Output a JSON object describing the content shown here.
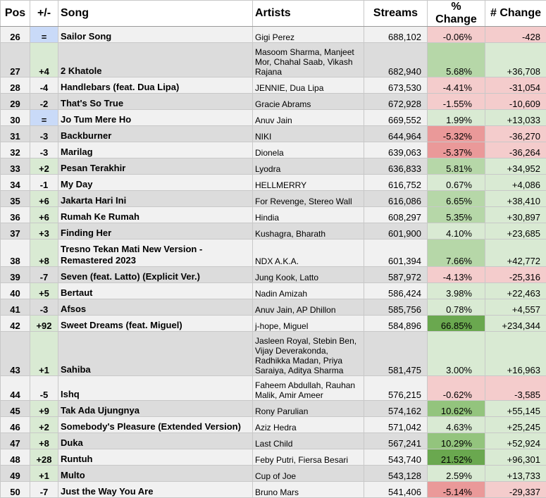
{
  "colors": {
    "neutral": "#c9daf8",
    "up_cell": "#d9ead3",
    "pos_light": "#d9ead3",
    "pos_mid": "#b6d7a8",
    "pos_strong": "#93c47d",
    "pos_max": "#6aa84f",
    "neg_light": "#f4cccc",
    "neg_mid": "#ea9999"
  },
  "header": {
    "pos": "Pos",
    "move": "+/-",
    "song": "Song",
    "artists": "Artists",
    "streams": "Streams",
    "pct": "% Change",
    "abs": "# Change"
  },
  "rows": [
    {
      "pos": "26",
      "move": "=",
      "song": "Sailor Song",
      "artists": "Gigi Perez",
      "streams": "688,102",
      "pct": "-0.06%",
      "abs": "-428",
      "dir": "same",
      "h": 22,
      "pctColor": "#f4cccc",
      "absColor": "#f4cccc"
    },
    {
      "pos": "27",
      "move": "+4",
      "song": "2 Khatole",
      "artists": "Masoom Sharma, Manjeet Mor, Chahal Saab, Vikash Rajana",
      "streams": "682,940",
      "pct": "5.68%",
      "abs": "+36,708",
      "dir": "up",
      "h": 48,
      "pctColor": "#b6d7a8",
      "absColor": "#d9ead3"
    },
    {
      "pos": "28",
      "move": "-4",
      "song": "Handlebars (feat. Dua Lipa)",
      "artists": "JENNIE, Dua Lipa",
      "streams": "673,530",
      "pct": "-4.41%",
      "abs": "-31,054",
      "dir": "down",
      "h": 22,
      "pctColor": "#f4cccc",
      "absColor": "#f4cccc"
    },
    {
      "pos": "29",
      "move": "-2",
      "song": "That's So True",
      "artists": "Gracie Abrams",
      "streams": "672,928",
      "pct": "-1.55%",
      "abs": "-10,609",
      "dir": "down",
      "h": 22,
      "pctColor": "#f4cccc",
      "absColor": "#f4cccc"
    },
    {
      "pos": "30",
      "move": "=",
      "song": "Jo Tum Mere Ho",
      "artists": "Anuv Jain",
      "streams": "669,552",
      "pct": "1.99%",
      "abs": "+13,033",
      "dir": "same",
      "h": 22,
      "pctColor": "#d9ead3",
      "absColor": "#d9ead3"
    },
    {
      "pos": "31",
      "move": "-3",
      "song": "Backburner",
      "artists": "NIKI",
      "streams": "644,964",
      "pct": "-5.32%",
      "abs": "-36,270",
      "dir": "down",
      "h": 22,
      "pctColor": "#ea9999",
      "absColor": "#f4cccc"
    },
    {
      "pos": "32",
      "move": "-3",
      "song": "Marilag",
      "artists": "Dionela",
      "streams": "639,063",
      "pct": "-5.37%",
      "abs": "-36,264",
      "dir": "down",
      "h": 22,
      "pctColor": "#ea9999",
      "absColor": "#f4cccc"
    },
    {
      "pos": "33",
      "move": "+2",
      "song": "Pesan Terakhir",
      "artists": "Lyodra",
      "streams": "636,833",
      "pct": "5.81%",
      "abs": "+34,952",
      "dir": "up",
      "h": 22,
      "pctColor": "#b6d7a8",
      "absColor": "#d9ead3"
    },
    {
      "pos": "34",
      "move": "-1",
      "song": "My Day",
      "artists": "HELLMERRY",
      "streams": "616,752",
      "pct": "0.67%",
      "abs": "+4,086",
      "dir": "down",
      "h": 22,
      "pctColor": "#d9ead3",
      "absColor": "#d9ead3"
    },
    {
      "pos": "35",
      "move": "+6",
      "song": "Jakarta Hari Ini",
      "artists": "For Revenge, Stereo Wall",
      "streams": "616,086",
      "pct": "6.65%",
      "abs": "+38,410",
      "dir": "up",
      "h": 22,
      "pctColor": "#b6d7a8",
      "absColor": "#d9ead3"
    },
    {
      "pos": "36",
      "move": "+6",
      "song": "Rumah Ke Rumah",
      "artists": "Hindia",
      "streams": "608,297",
      "pct": "5.35%",
      "abs": "+30,897",
      "dir": "up",
      "h": 22,
      "pctColor": "#b6d7a8",
      "absColor": "#d9ead3"
    },
    {
      "pos": "37",
      "move": "+3",
      "song": "Finding Her",
      "artists": "Kushagra, Bharath",
      "streams": "601,900",
      "pct": "4.10%",
      "abs": "+23,685",
      "dir": "up",
      "h": 22,
      "pctColor": "#d9ead3",
      "absColor": "#d9ead3"
    },
    {
      "pos": "38",
      "move": "+8",
      "song": "Tresno Tekan Mati New Version - Remastered 2023",
      "artists": "NDX A.K.A.",
      "streams": "601,394",
      "pct": "7.66%",
      "abs": "+42,772",
      "dir": "up",
      "h": 38,
      "pctColor": "#b6d7a8",
      "absColor": "#d9ead3"
    },
    {
      "pos": "39",
      "move": "-7",
      "song": "Seven (feat. Latto) (Explicit Ver.)",
      "artists": "Jung Kook, Latto",
      "streams": "587,972",
      "pct": "-4.13%",
      "abs": "-25,316",
      "dir": "down",
      "h": 22,
      "pctColor": "#f4cccc",
      "absColor": "#f4cccc"
    },
    {
      "pos": "40",
      "move": "+5",
      "song": "Bertaut",
      "artists": "Nadin Amizah",
      "streams": "586,424",
      "pct": "3.98%",
      "abs": "+22,463",
      "dir": "up",
      "h": 22,
      "pctColor": "#d9ead3",
      "absColor": "#d9ead3"
    },
    {
      "pos": "41",
      "move": "-3",
      "song": "Afsos",
      "artists": "Anuv Jain, AP Dhillon",
      "streams": "585,756",
      "pct": "0.78%",
      "abs": "+4,557",
      "dir": "down",
      "h": 22,
      "pctColor": "#d9ead3",
      "absColor": "#d9ead3"
    },
    {
      "pos": "42",
      "move": "+92",
      "song": "Sweet Dreams (feat. Miguel)",
      "artists": "j-hope, Miguel",
      "streams": "584,896",
      "pct": "66.85%",
      "abs": "+234,344",
      "dir": "up",
      "h": 22,
      "pctColor": "#6aa84f",
      "absColor": "#d9ead3"
    },
    {
      "pos": "43",
      "move": "+1",
      "song": "Sahiba",
      "artists": "Jasleen Royal, Stebin Ben, Vijay Deverakonda, Radhikka Madan, Priya Saraiya, Aditya Sharma",
      "streams": "581,475",
      "pct": "3.00%",
      "abs": "+16,963",
      "dir": "up",
      "h": 62,
      "pctColor": "#d9ead3",
      "absColor": "#d9ead3"
    },
    {
      "pos": "44",
      "move": "-5",
      "song": "Ishq",
      "artists": "Faheem Abdullah, Rauhan Malik, Amir Ameer",
      "streams": "576,215",
      "pct": "-0.62%",
      "abs": "-3,585",
      "dir": "down",
      "h": 34,
      "pctColor": "#f4cccc",
      "absColor": "#f4cccc"
    },
    {
      "pos": "45",
      "move": "+9",
      "song": "Tak Ada Ujungnya",
      "artists": "Rony Parulian",
      "streams": "574,162",
      "pct": "10.62%",
      "abs": "+55,145",
      "dir": "up",
      "h": 22,
      "pctColor": "#93c47d",
      "absColor": "#d9ead3"
    },
    {
      "pos": "46",
      "move": "+2",
      "song": "Somebody's Pleasure (Extended Version)",
      "artists": "Aziz Hedra",
      "streams": "571,042",
      "pct": "4.63%",
      "abs": "+25,245",
      "dir": "up",
      "h": 22,
      "pctColor": "#d9ead3",
      "absColor": "#d9ead3"
    },
    {
      "pos": "47",
      "move": "+8",
      "song": "Duka",
      "artists": "Last Child",
      "streams": "567,241",
      "pct": "10.29%",
      "abs": "+52,924",
      "dir": "up",
      "h": 22,
      "pctColor": "#93c47d",
      "absColor": "#d9ead3"
    },
    {
      "pos": "48",
      "move": "+28",
      "song": "Runtuh",
      "artists": "Feby Putri, Fiersa Besari",
      "streams": "543,740",
      "pct": "21.52%",
      "abs": "+96,301",
      "dir": "up",
      "h": 22,
      "pctColor": "#6aa84f",
      "absColor": "#d9ead3"
    },
    {
      "pos": "49",
      "move": "+1",
      "song": "Multo",
      "artists": "Cup of Joe",
      "streams": "543,128",
      "pct": "2.59%",
      "abs": "+13,733",
      "dir": "up",
      "h": 22,
      "pctColor": "#d9ead3",
      "absColor": "#d9ead3"
    },
    {
      "pos": "50",
      "move": "-7",
      "song": "Just the Way You Are",
      "artists": "Bruno Mars",
      "streams": "541,406",
      "pct": "-5.14%",
      "abs": "-29,337",
      "dir": "down",
      "h": 22,
      "pctColor": "#ea9999",
      "absColor": "#f4cccc"
    }
  ]
}
